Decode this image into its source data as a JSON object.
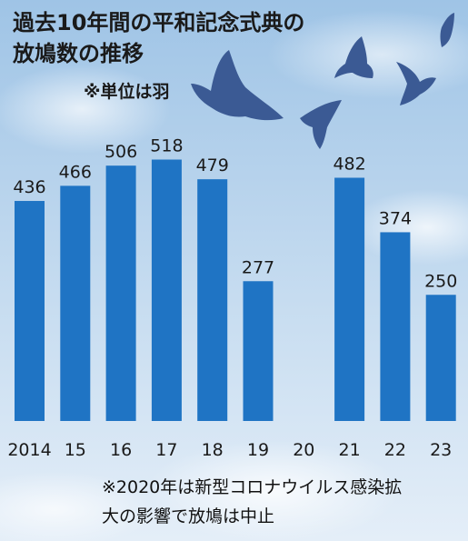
{
  "title_line1": "過去10年間の平和記念式典の",
  "title_line2": "放鳩数の推移",
  "unit_note": "※単位は羽",
  "footnote_line1": "※2020年は新型コロナウイルス感染拡",
  "footnote_line2": "大の影響で放鳩は中止",
  "colors": {
    "bar": "#1f74c4",
    "text": "#1a1a1a",
    "bird": "#3b5a94"
  },
  "chart_data": {
    "type": "bar",
    "categories": [
      "2014",
      "15",
      "16",
      "17",
      "18",
      "19",
      "20",
      "21",
      "22",
      "23"
    ],
    "values": [
      436,
      466,
      506,
      518,
      479,
      277,
      null,
      482,
      374,
      250
    ],
    "value_labels": [
      "436",
      "466",
      "506",
      "518",
      "479",
      "277",
      "",
      "482",
      "374",
      "250"
    ],
    "title": "過去10年間の平和記念式典の放鳩数の推移",
    "ylim": [
      0,
      600
    ],
    "grid": false,
    "legend": "none"
  }
}
